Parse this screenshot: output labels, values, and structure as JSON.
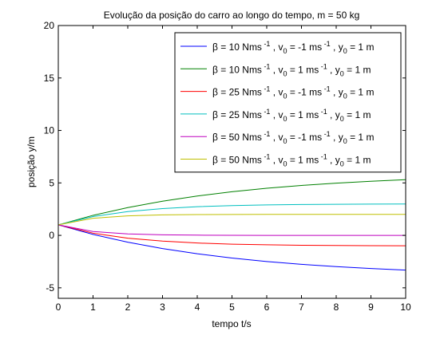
{
  "chart_data": {
    "type": "line",
    "title": "Evolução da posição do carro ao longo do tempo, m = 50 kg",
    "xlabel": "tempo t/s",
    "ylabel": "posição y/m",
    "xlim": [
      0,
      10
    ],
    "ylim": [
      -6,
      20
    ],
    "xticks": [
      0,
      1,
      2,
      3,
      4,
      5,
      6,
      7,
      8,
      9,
      10
    ],
    "yticks": [
      -5,
      0,
      5,
      10,
      15,
      20
    ],
    "grid": false,
    "legend_position": "top-right",
    "series": [
      {
        "name": "β = 10 Nms -1 , v0 = -1 ms -1 , y0 = 1 m",
        "legend": {
          "beta": "10",
          "v0": "-1",
          "y0": "1"
        },
        "color": "#0000ff",
        "x": [
          0,
          1,
          2,
          3,
          4,
          5,
          6,
          7,
          8,
          9,
          10
        ],
        "y": [
          1.0,
          0.09,
          -0.65,
          -1.26,
          -1.75,
          -2.16,
          -2.49,
          -2.76,
          -2.98,
          -3.16,
          -3.31
        ]
      },
      {
        "name": "β = 10 Nms -1 , v0 = 1 ms -1 , y0 = 1 m",
        "legend": {
          "beta": "10",
          "v0": "1",
          "y0": "1"
        },
        "color": "#008000",
        "x": [
          0,
          1,
          2,
          3,
          4,
          5,
          6,
          7,
          8,
          9,
          10
        ],
        "y": [
          1.0,
          1.91,
          2.65,
          3.26,
          3.75,
          4.16,
          4.49,
          4.76,
          4.98,
          5.16,
          5.31
        ]
      },
      {
        "name": "β = 25 Nms -1 , v0 = -1 ms -1 , y0 = 1 m",
        "legend": {
          "beta": "25",
          "v0": "-1",
          "y0": "1"
        },
        "color": "#ff0000",
        "x": [
          0,
          1,
          2,
          3,
          4,
          5,
          6,
          7,
          8,
          9,
          10
        ],
        "y": [
          1.0,
          0.21,
          -0.27,
          -0.55,
          -0.73,
          -0.84,
          -0.9,
          -0.94,
          -0.96,
          -0.98,
          -0.99
        ]
      },
      {
        "name": "β = 25 Nms -1 , v0 = 1 ms -1 , y0 = 1 m",
        "legend": {
          "beta": "25",
          "v0": "1",
          "y0": "1"
        },
        "color": "#00bfbf",
        "x": [
          0,
          1,
          2,
          3,
          4,
          5,
          6,
          7,
          8,
          9,
          10
        ],
        "y": [
          1.0,
          1.79,
          2.27,
          2.55,
          2.73,
          2.84,
          2.9,
          2.94,
          2.96,
          2.98,
          2.99
        ]
      },
      {
        "name": "β = 50 Nms -1 , v0 = -1 ms -1 , y0 = 1 m",
        "legend": {
          "beta": "50",
          "v0": "-1",
          "y0": "1"
        },
        "color": "#bf00bf",
        "x": [
          0,
          1,
          2,
          3,
          4,
          5,
          6,
          7,
          8,
          9,
          10
        ],
        "y": [
          1.0,
          0.37,
          0.14,
          0.05,
          0.02,
          0.01,
          0.0,
          0.0,
          0.0,
          0.0,
          0.0
        ]
      },
      {
        "name": "β = 50 Nms -1 , v0 = 1 ms -1 , y0 = 1 m",
        "legend": {
          "beta": "50",
          "v0": "1",
          "y0": "1"
        },
        "color": "#bfbf00",
        "x": [
          0,
          1,
          2,
          3,
          4,
          5,
          6,
          7,
          8,
          9,
          10
        ],
        "y": [
          1.0,
          1.63,
          1.86,
          1.95,
          1.98,
          1.99,
          2.0,
          2.0,
          2.0,
          2.0,
          2.0
        ]
      }
    ]
  }
}
